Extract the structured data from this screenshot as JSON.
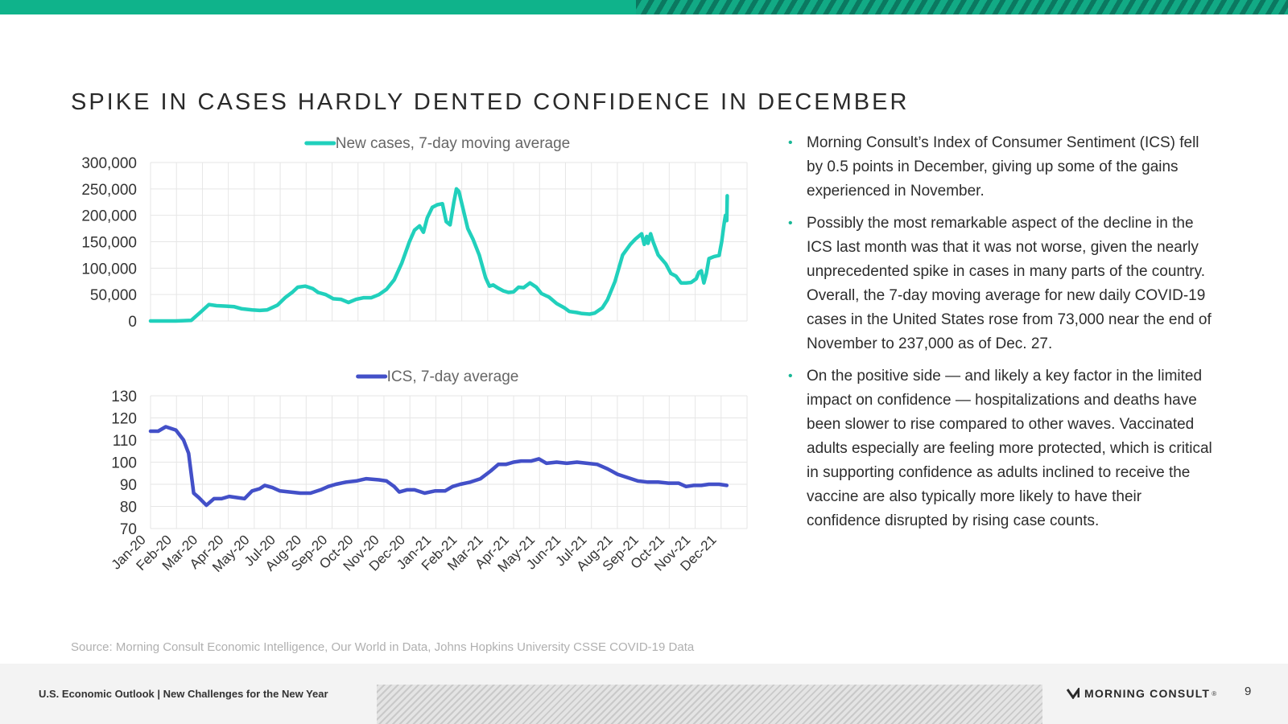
{
  "page": {
    "title": "SPIKE IN CASES HARDLY DENTED CONFIDENCE IN DECEMBER",
    "source": "Source: Morning Consult Economic Intelligence, Our World in Data, Johns Hopkins University CSSE COVID-19 Data",
    "footer_text": "U.S. Economic Outlook | New Challenges for the New Year",
    "logo_text": "MORNING CONSULT",
    "logo_mark": "®",
    "page_number": "9"
  },
  "bullets": [
    "Morning Consult’s Index of Consumer Sentiment (ICS) fell by 0.5 points in December, giving up some of the gains experienced in November.",
    "Possibly the most remarkable aspect of the decline in the ICS last month was that it was not worse, given the nearly unprecedented spike in cases in many parts of the country. Overall, the 7-day moving average for new daily COVID-19 cases in the United States rose from 73,000 near the end of November to 237,000 as of Dec. 27.",
    "On the positive side — and likely a key factor in the limited impact on confidence — hospitalizations and deaths have been slower to rise compared to other waves. Vaccinated adults especially are feeling more protected, which is critical in supporting confidence as adults inclined to receive the vaccine are also typically more likely to have their confidence disrupted by rising case counts."
  ],
  "colors": {
    "accent": "#0fb38b",
    "cases_line": "#21d0bc",
    "ics_line": "#4350c8",
    "bullet": "#18b796"
  },
  "chart_data": [
    {
      "type": "line",
      "title": "",
      "legend": "top-center",
      "grid": true,
      "x_range": [
        0,
        23.5
      ],
      "ylim": [
        0,
        300000
      ],
      "yticks": [
        "0",
        "50,000",
        "100,000",
        "150,000",
        "200,000",
        "250,000",
        "300,000"
      ],
      "series": [
        {
          "name": "New cases, 7-day moving average",
          "color": "#21d0bc",
          "points": [
            [
              0,
              0
            ],
            [
              1.0,
              0
            ],
            [
              1.6,
              1000
            ],
            [
              2.0,
              18000
            ],
            [
              2.3,
              31000
            ],
            [
              2.6,
              29000
            ],
            [
              3.0,
              28000
            ],
            [
              3.3,
              27000
            ],
            [
              3.6,
              23000
            ],
            [
              4.0,
              21000
            ],
            [
              4.3,
              20000
            ],
            [
              4.6,
              21000
            ],
            [
              5.0,
              30000
            ],
            [
              5.3,
              44000
            ],
            [
              5.6,
              55000
            ],
            [
              5.8,
              64000
            ],
            [
              6.1,
              66000
            ],
            [
              6.4,
              61000
            ],
            [
              6.6,
              54000
            ],
            [
              6.9,
              50000
            ],
            [
              7.2,
              42000
            ],
            [
              7.5,
              41000
            ],
            [
              7.8,
              35000
            ],
            [
              8.1,
              41000
            ],
            [
              8.4,
              44000
            ],
            [
              8.7,
              44000
            ],
            [
              9.0,
              50000
            ],
            [
              9.3,
              60000
            ],
            [
              9.6,
              78000
            ],
            [
              9.9,
              110000
            ],
            [
              10.2,
              150000
            ],
            [
              10.4,
              172000
            ],
            [
              10.6,
              180000
            ],
            [
              10.75,
              168000
            ],
            [
              10.9,
              195000
            ],
            [
              11.1,
              215000
            ],
            [
              11.3,
              220000
            ],
            [
              11.5,
              222000
            ],
            [
              11.65,
              188000
            ],
            [
              11.8,
              182000
            ],
            [
              11.95,
              225000
            ],
            [
              12.05,
              250000
            ],
            [
              12.15,
              245000
            ],
            [
              12.3,
              215000
            ],
            [
              12.5,
              175000
            ],
            [
              12.7,
              155000
            ],
            [
              12.95,
              125000
            ],
            [
              13.2,
              82000
            ],
            [
              13.35,
              66000
            ],
            [
              13.5,
              68000
            ],
            [
              13.7,
              62000
            ],
            [
              13.9,
              57000
            ],
            [
              14.1,
              54000
            ],
            [
              14.3,
              55000
            ],
            [
              14.5,
              64000
            ],
            [
              14.7,
              63000
            ],
            [
              14.95,
              72000
            ],
            [
              15.2,
              64000
            ],
            [
              15.4,
              52000
            ],
            [
              15.7,
              45000
            ],
            [
              16.0,
              33000
            ],
            [
              16.3,
              25000
            ],
            [
              16.5,
              18000
            ],
            [
              16.8,
              16000
            ],
            [
              17.0,
              14000
            ],
            [
              17.3,
              13000
            ],
            [
              17.5,
              15000
            ],
            [
              17.8,
              25000
            ],
            [
              18.0,
              40000
            ],
            [
              18.3,
              75000
            ],
            [
              18.6,
              125000
            ],
            [
              18.9,
              145000
            ],
            [
              19.1,
              155000
            ],
            [
              19.35,
              165000
            ],
            [
              19.45,
              145000
            ],
            [
              19.55,
              160000
            ],
            [
              19.6,
              147000
            ],
            [
              19.7,
              165000
            ],
            [
              19.8,
              150000
            ],
            [
              20.0,
              125000
            ],
            [
              20.3,
              108000
            ],
            [
              20.5,
              90000
            ],
            [
              20.7,
              85000
            ],
            [
              20.9,
              72000
            ],
            [
              21.1,
              72000
            ],
            [
              21.3,
              73000
            ],
            [
              21.5,
              80000
            ],
            [
              21.6,
              92000
            ],
            [
              21.7,
              95000
            ],
            [
              21.8,
              72000
            ],
            [
              21.9,
              90000
            ],
            [
              22.0,
              118000
            ],
            [
              22.2,
              122000
            ],
            [
              22.4,
              124000
            ],
            [
              22.5,
              150000
            ],
            [
              22.6,
              185000
            ],
            [
              22.65,
              200000
            ],
            [
              22.7,
              190000
            ],
            [
              22.72,
              237000
            ]
          ]
        }
      ]
    },
    {
      "type": "line",
      "title": "",
      "legend": "top-center",
      "grid": true,
      "x_range": [
        0,
        23.5
      ],
      "ylim": [
        70,
        130
      ],
      "yticks": [
        "70",
        "80",
        "90",
        "100",
        "110",
        "120",
        "130"
      ],
      "xticks": [
        "Jan-20",
        "Feb-20",
        "Mar-20",
        "Apr-20",
        "May-20",
        "Jul-20",
        "Aug-20",
        "Sep-20",
        "Oct-20",
        "Nov-20",
        "Dec-20",
        "Jan-21",
        "Feb-21",
        "Mar-21",
        "Apr-21",
        "May-21",
        "Jun-21",
        "Jul-21",
        "Aug-21",
        "Sep-21",
        "Oct-21",
        "Nov-21",
        "Dec-21"
      ],
      "series": [
        {
          "name": "ICS, 7-day average",
          "color": "#4350c8",
          "points": [
            [
              0,
              114
            ],
            [
              0.3,
              114
            ],
            [
              0.6,
              116
            ],
            [
              1.0,
              114.5
            ],
            [
              1.3,
              110
            ],
            [
              1.5,
              104
            ],
            [
              1.7,
              86
            ],
            [
              1.9,
              84
            ],
            [
              2.2,
              80.5
            ],
            [
              2.5,
              83.5
            ],
            [
              2.8,
              83.5
            ],
            [
              3.1,
              84.5
            ],
            [
              3.4,
              84
            ],
            [
              3.7,
              83.5
            ],
            [
              4.0,
              87
            ],
            [
              4.3,
              88
            ],
            [
              4.5,
              89.5
            ],
            [
              4.8,
              88.5
            ],
            [
              5.1,
              87
            ],
            [
              5.5,
              86.5
            ],
            [
              5.9,
              86
            ],
            [
              6.3,
              86
            ],
            [
              6.7,
              87.5
            ],
            [
              7.0,
              89
            ],
            [
              7.3,
              90
            ],
            [
              7.7,
              91
            ],
            [
              8.1,
              91.5
            ],
            [
              8.5,
              92.5
            ],
            [
              9.0,
              92
            ],
            [
              9.3,
              91.5
            ],
            [
              9.6,
              89
            ],
            [
              9.8,
              86.5
            ],
            [
              10.1,
              87.5
            ],
            [
              10.4,
              87.5
            ],
            [
              10.8,
              86
            ],
            [
              11.2,
              87
            ],
            [
              11.6,
              87
            ],
            [
              11.9,
              89
            ],
            [
              12.2,
              90
            ],
            [
              12.6,
              91
            ],
            [
              13.0,
              92.5
            ],
            [
              13.4,
              96
            ],
            [
              13.7,
              99
            ],
            [
              14.0,
              99
            ],
            [
              14.3,
              100
            ],
            [
              14.6,
              100.5
            ],
            [
              15.0,
              100.5
            ],
            [
              15.3,
              101.5
            ],
            [
              15.6,
              99.5
            ],
            [
              16.0,
              100
            ],
            [
              16.4,
              99.5
            ],
            [
              16.8,
              100
            ],
            [
              17.2,
              99.5
            ],
            [
              17.6,
              99
            ],
            [
              18.0,
              97
            ],
            [
              18.4,
              94.5
            ],
            [
              18.8,
              93
            ],
            [
              19.2,
              91.5
            ],
            [
              19.6,
              91
            ],
            [
              20.0,
              91
            ],
            [
              20.4,
              90.5
            ],
            [
              20.8,
              90.5
            ],
            [
              21.1,
              89
            ],
            [
              21.4,
              89.5
            ],
            [
              21.7,
              89.5
            ],
            [
              22.0,
              90
            ],
            [
              22.4,
              90
            ],
            [
              22.7,
              89.5
            ]
          ]
        }
      ]
    }
  ]
}
